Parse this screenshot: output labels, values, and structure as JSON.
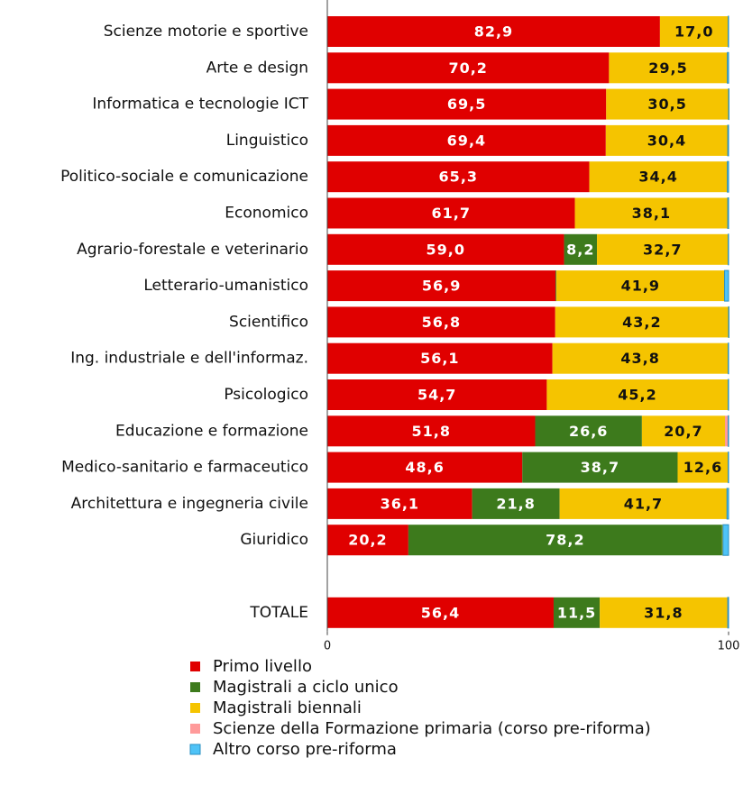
{
  "chart_data": {
    "type": "bar",
    "orientation": "horizontal",
    "stacked": true,
    "categories": [
      "Scienze motorie e sportive",
      "Arte e design",
      "Informatica e tecnologie ICT",
      "Linguistico",
      "Politico-sociale e comunicazione",
      "Economico",
      "Agrario-forestale e veterinario",
      "Letterario-umanistico",
      "Scientifico",
      "Ing. industriale e dell'informaz.",
      "Psicologico",
      "Educazione e formazione",
      "Medico-sanitario e farmaceutico",
      "Architettura e ingegneria civile",
      "Giuridico",
      null,
      "TOTALE"
    ],
    "series": [
      {
        "name": "Primo livello",
        "color": "#e00000",
        "values": [
          82.9,
          70.2,
          69.5,
          69.4,
          65.3,
          61.7,
          59.0,
          56.9,
          56.8,
          56.1,
          54.7,
          51.8,
          48.6,
          36.1,
          20.2,
          null,
          56.4
        ],
        "value_labels": [
          "82,9",
          "70,2",
          "69,5",
          "69,4",
          "65,3",
          "61,7",
          "59,0",
          "56,9",
          "56,8",
          "56,1",
          "54,7",
          "51,8",
          "48,6",
          "36,1",
          "20,2",
          null,
          "56,4"
        ]
      },
      {
        "name": "Magistrali a ciclo unico",
        "color": "#3d7a1c",
        "values": [
          0,
          0,
          0,
          0,
          0,
          0,
          8.2,
          0.2,
          0,
          0,
          0,
          26.6,
          38.7,
          21.8,
          78.2,
          null,
          11.5
        ],
        "value_labels": [
          null,
          null,
          null,
          null,
          null,
          null,
          "8,2",
          null,
          null,
          null,
          null,
          "26,6",
          "38,7",
          "21,8",
          "78,2",
          null,
          "11,5"
        ]
      },
      {
        "name": "Magistrali biennali",
        "color": "#f5c400",
        "values": [
          17.0,
          29.5,
          30.5,
          30.4,
          34.4,
          38.1,
          32.7,
          41.9,
          43.2,
          43.8,
          45.2,
          20.7,
          12.6,
          41.7,
          0.2,
          null,
          31.8
        ],
        "value_labels": [
          "17,0",
          "29,5",
          "30,5",
          "30,4",
          "34,4",
          "38,1",
          "32,7",
          "41,9",
          "43,2",
          "43,8",
          "45,2",
          "20,7",
          "12,6",
          "41,7",
          null,
          null,
          "31,8"
        ]
      },
      {
        "name": "Scienze della Formazione primaria (corso pre-riforma)",
        "color": "#ff9a9a",
        "values": [
          0,
          0,
          0,
          0,
          0,
          0,
          0,
          0,
          0,
          0,
          0,
          0.8,
          0,
          0,
          0,
          null,
          0.1
        ]
      },
      {
        "name": "Altro corso pre-riforma",
        "color": "#4fc3f7",
        "values": [
          0.1,
          0.3,
          0.1,
          0.2,
          0.3,
          0.2,
          0.1,
          1.0,
          0.1,
          0.1,
          0.1,
          0.1,
          0.1,
          0.4,
          1.4,
          null,
          0.2
        ]
      }
    ],
    "xlim": [
      0,
      100
    ],
    "xticks": [
      0,
      100
    ]
  }
}
